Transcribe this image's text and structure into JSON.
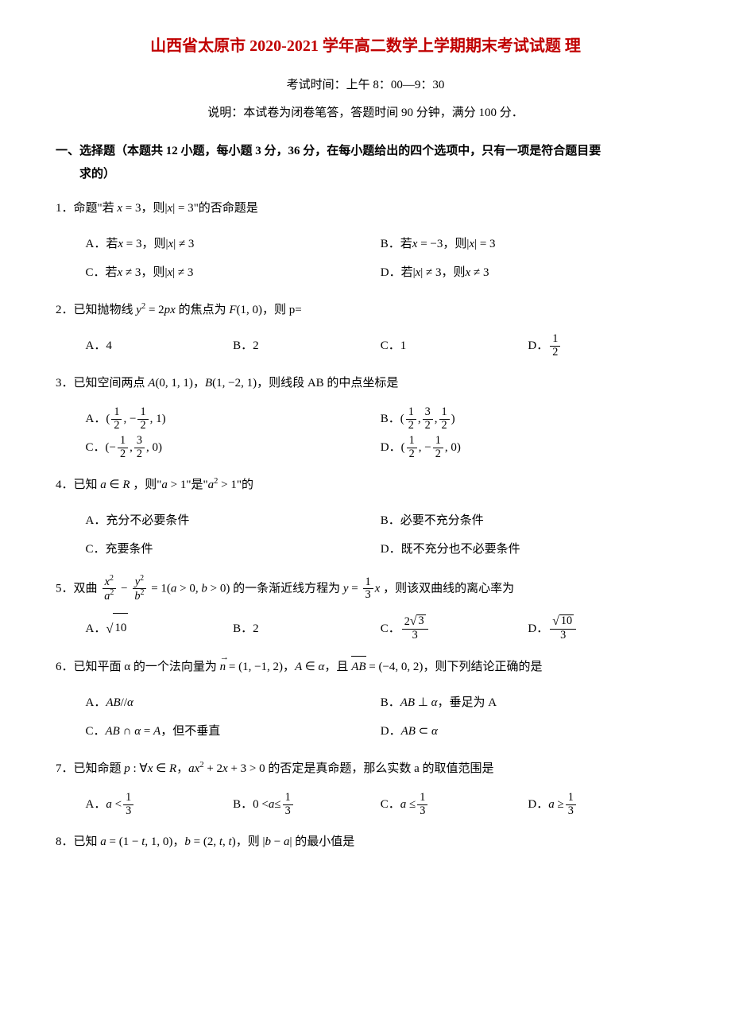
{
  "colors": {
    "title": "#c00000",
    "text": "#000000",
    "background": "#ffffff"
  },
  "title": "山西省太原市 2020-2021 学年高二数学上学期期末考试试题 理",
  "exam_time": "考试时间：上午 8：00—9：30",
  "description": "说明：本试卷为闭卷笔答，答题时间 90 分钟，满分 100 分．",
  "section_header_l1": "一、选择题（本题共 12 小题，每小题 3 分，36 分，在每小题给出的四个选项中，只有一项是符合题目要",
  "section_header_l2": "求的）",
  "q1": {
    "text_prefix": "1．命题\"若 ",
    "text_mid": "，则",
    "text_suffix": "\"的否命题是",
    "optA_pre": "A．若 ",
    "optA_mid": "，则",
    "optB_pre": "B．若 ",
    "optB_mid": "，则",
    "optC_pre": "C．若 ",
    "optC_mid": "，则",
    "optD_pre": "D．若 ",
    "optD_mid": "，则"
  },
  "q2": {
    "text_prefix": "2．已知抛物线 ",
    "text_mid": " 的焦点为",
    "text_suffix": "，则 p=",
    "optA": "A．4",
    "optB": "B．2",
    "optC": "C．1",
    "optD": "D．"
  },
  "q3": {
    "text_prefix": "3．已知空间两点 ",
    "text_mid": "，",
    "text_suffix": "，则线段 AB 的中点坐标是",
    "optA": "A．",
    "optB": "B．",
    "optC": "C．",
    "optD": "D．"
  },
  "q4": {
    "text_prefix": "4．已知",
    "text_mid1": "，则\"",
    "text_mid2": "\"是\"",
    "text_suffix": "\"的",
    "optA": "A．充分不必要条件",
    "optB": "B．必要不充分条件",
    "optC": "C．充要条件",
    "optD": "D．既不充分也不必要条件"
  },
  "q5": {
    "text_prefix": "5．双曲 ",
    "text_mid": " 的一条渐近线方程为 ",
    "text_suffix": " ，则该双曲线的离心率为",
    "optA": "A．",
    "optB": "B．2",
    "optC": "C．",
    "optD": "D．"
  },
  "q6": {
    "text_prefix": "6．已知平面 α 的一个法向量为",
    "text_mid1": "，",
    "text_mid2": "，且 ",
    "text_suffix": "，则下列结论正确的是",
    "optA": "A．",
    "optB_pre": "B．",
    "optB_suf": "，垂足为 A",
    "optC_pre": "C．",
    "optC_suf": "，但不垂直",
    "optD": "D．"
  },
  "q7": {
    "text_prefix": "7．已知命题",
    "text_mid": "，",
    "text_suffix": " 的否定是真命题，那么实数 a 的取值范围是",
    "optA": "A．",
    "optB": "B．",
    "optC": "C．",
    "optD": "D．"
  },
  "q8": {
    "text_prefix": "8．已知",
    "text_mid": "，",
    "text_suffix": "，则",
    "text_end": "的最小值是"
  }
}
